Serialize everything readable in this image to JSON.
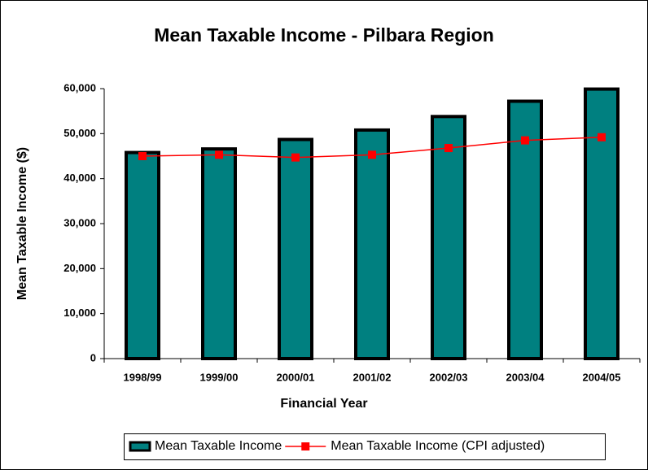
{
  "chart_data": {
    "type": "bar_line",
    "title": "Mean Taxable Income - Pilbara Region",
    "xlabel": "Financial Year",
    "ylabel": "Mean Taxable Income ($)",
    "categories": [
      "1998/99",
      "1999/00",
      "2000/01",
      "2001/02",
      "2002/03",
      "2003/04",
      "2004/05"
    ],
    "series": [
      {
        "name": "Mean Taxable Income",
        "type": "bar",
        "color": "#008080",
        "values": [
          45800,
          46600,
          48700,
          50800,
          53800,
          57200,
          59900
        ]
      },
      {
        "name": "Mean Taxable Income (CPI adjusted)",
        "type": "line",
        "color": "#ff0000",
        "values": [
          45000,
          45300,
          44700,
          45300,
          46800,
          48500,
          49200
        ]
      }
    ],
    "ylim": [
      0,
      60000
    ],
    "yticks": [
      0,
      {
        "value": 10000,
        "label": "10,000"
      },
      {
        "value": 20000,
        "label": "20,000"
      },
      {
        "value": 30000,
        "label": "30,000"
      },
      {
        "value": 40000,
        "label": "40,000"
      },
      {
        "value": 50000,
        "label": "50,000"
      },
      {
        "value": 60000,
        "label": "60,000"
      }
    ],
    "legend": "bottom"
  }
}
